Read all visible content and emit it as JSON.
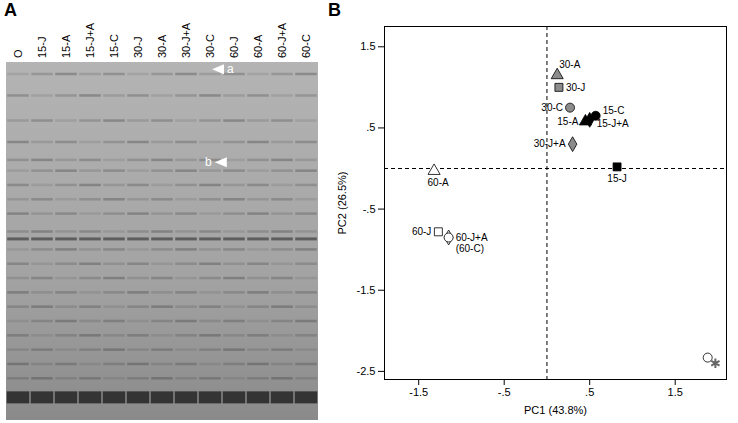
{
  "gel": {
    "panel_label": "A",
    "lanes": [
      "O",
      "15-J",
      "15-A",
      "15-J+A",
      "15-C",
      "30-J",
      "30-A",
      "30-J+A",
      "30-C",
      "60-J",
      "60-A",
      "60-J+A",
      "60-C"
    ],
    "arrows": [
      {
        "label": "a",
        "lane": "30-C"
      },
      {
        "label": "b",
        "lane": "30-C"
      }
    ]
  },
  "chart_data": {
    "type": "scatter",
    "panel_label": "B",
    "x_label": "PC1 (43.8%)",
    "y_label": "PC2 (26.5%)",
    "xlim": [
      -1.9,
      2.1
    ],
    "ylim": [
      -2.6,
      1.75
    ],
    "xticks": [
      -1.5,
      {
        "value": -0.5,
        "label": "-.5"
      },
      {
        "value": 0.5,
        "label": ".5"
      },
      1.5
    ],
    "yticks": [
      {
        "value": -2.5,
        "label": "-2.5"
      },
      -1.5,
      {
        "value": -0.5,
        "label": "-.5"
      },
      {
        "value": 0.5,
        "label": ".5"
      },
      1.5
    ],
    "grid": false,
    "reference_lines": [
      {
        "axis": "x",
        "value": 0,
        "line_style": "dashed"
      },
      {
        "axis": "y",
        "value": 0,
        "line_style": "dashed"
      }
    ],
    "points": [
      {
        "label": "30-A",
        "x": 0.12,
        "y": 1.15,
        "color": "#8c8c8c",
        "marker": "triangle"
      },
      {
        "label": "30-J",
        "x": 0.14,
        "y": 1.0,
        "color": "#8c8c8c",
        "marker": "square"
      },
      {
        "label": "30-C",
        "x": 0.27,
        "y": 0.75,
        "color": "#8c8c8c",
        "marker": "circle"
      },
      {
        "label": "15-A",
        "x": 0.45,
        "y": 0.58,
        "color": "#000000",
        "marker": "triangle"
      },
      {
        "label": "15-J+A",
        "x": 0.5,
        "y": 0.6,
        "color": "#000000",
        "marker": "diamond"
      },
      {
        "label": "15-C",
        "x": 0.57,
        "y": 0.65,
        "color": "#000000",
        "marker": "circle"
      },
      {
        "label": "30-J+A",
        "x": 0.3,
        "y": 0.3,
        "color": "#8c8c8c",
        "marker": "diamond"
      },
      {
        "label": "15-J",
        "x": 0.82,
        "y": 0.02,
        "color": "#000000",
        "marker": "square"
      },
      {
        "label": "60-A",
        "x": -1.32,
        "y": -0.03,
        "color": "#ffffff",
        "marker": "triangle"
      },
      {
        "label": "60-J",
        "x": -1.27,
        "y": -0.78,
        "color": "#ffffff",
        "marker": "square"
      },
      {
        "label": "60-J+A",
        "x": -1.15,
        "y": -0.85,
        "color": "#ffffff",
        "marker": "diamond"
      },
      {
        "label": "(60-C)",
        "x": -1.15,
        "y": -0.85,
        "color": "#ffffff",
        "marker": "circle"
      },
      {
        "label": null,
        "x": 1.88,
        "y": -2.33,
        "color": "#ffffff",
        "marker": "circle"
      },
      {
        "label": null,
        "x": 1.97,
        "y": -2.4,
        "color": "#666666",
        "marker": "asterisk"
      }
    ]
  }
}
